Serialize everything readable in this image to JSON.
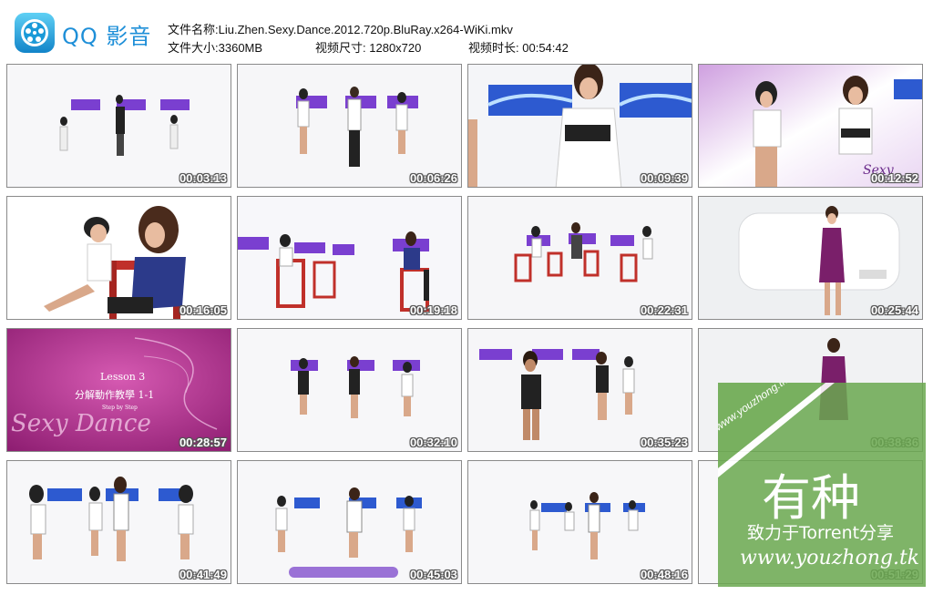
{
  "app": {
    "logo_text": "QQ 影音"
  },
  "file_info": {
    "name_label": "文件名称:",
    "name_value": "Liu.Zhen.Sexy.Dance.2012.720p.BluRay.x264-WiKi.mkv",
    "size_label": "文件大小:",
    "size_value": "3360MB",
    "dim_label": "视频尺寸:",
    "dim_value": "1280x720",
    "duration_label": "视频时长:",
    "duration_value": "00:54:42"
  },
  "thumbnails": [
    {
      "time": "00:03:13"
    },
    {
      "time": "00:06:26"
    },
    {
      "time": "00:09:39"
    },
    {
      "time": "00:12:52"
    },
    {
      "time": "00:16:05"
    },
    {
      "time": "00:19:18"
    },
    {
      "time": "00:22:31"
    },
    {
      "time": "00:25:44"
    },
    {
      "time": "00:28:57"
    },
    {
      "time": "00:32:10"
    },
    {
      "time": "00:35:23"
    },
    {
      "time": "00:38:36"
    },
    {
      "time": "00:41:49"
    },
    {
      "time": "00:45:03"
    },
    {
      "time": "00:48:16"
    },
    {
      "time": "00:51:29"
    }
  ],
  "frame_text": {
    "lesson": "Lesson 3",
    "lesson_cn": "分解動作教學 1-1",
    "step": "Step by Step",
    "logo_script": "Sexy Dance",
    "thumb4_script": "Sexy"
  },
  "watermark": {
    "diag": "www.youzhong.tk",
    "big": "有种",
    "sub": "致力于Torrent分享",
    "url": "www.youzhong.tk"
  },
  "colors": {
    "logo_blue": "#1e8fd8",
    "purple_bg": "#a0287e",
    "watermark_green": "#6aa84f"
  }
}
